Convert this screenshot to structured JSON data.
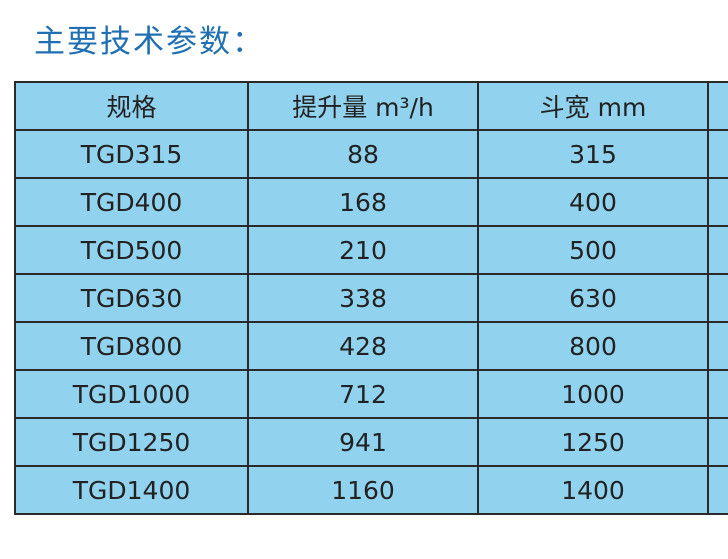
{
  "header": {
    "title": "主要技术参数："
  },
  "table": {
    "columns": [
      "规格",
      "提升量 m³/h",
      "斗宽 mm"
    ],
    "rows": [
      [
        "TGD315",
        88,
        315
      ],
      [
        "TGD400",
        168,
        400
      ],
      [
        "TGD500",
        210,
        500
      ],
      [
        "TGD630",
        338,
        630
      ],
      [
        "TGD800",
        428,
        800
      ],
      [
        "TGD1000",
        712,
        1000
      ],
      [
        "TGD1250",
        941,
        1250
      ],
      [
        "TGD1400",
        1160,
        1400
      ]
    ]
  }
}
